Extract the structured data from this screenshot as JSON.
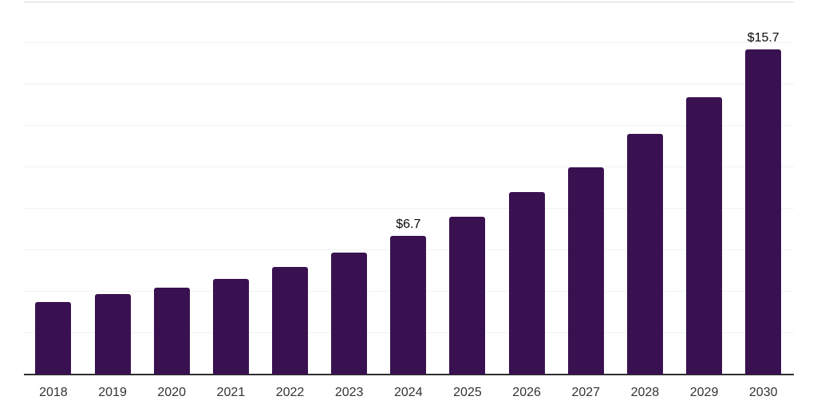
{
  "chart_data": {
    "type": "bar",
    "title": "",
    "xlabel": "",
    "ylabel": "",
    "categories": [
      "2018",
      "2019",
      "2020",
      "2021",
      "2022",
      "2023",
      "2024",
      "2025",
      "2026",
      "2027",
      "2028",
      "2029",
      "2030"
    ],
    "values": [
      3.5,
      3.9,
      4.2,
      4.6,
      5.2,
      5.9,
      6.7,
      7.6,
      8.8,
      10.0,
      11.6,
      13.4,
      15.7
    ],
    "point_labels": [
      "",
      "",
      "",
      "",
      "",
      "",
      "$6.7",
      "",
      "",
      "",
      "",
      "",
      "$15.7"
    ],
    "ylim": [
      0,
      18
    ],
    "gridline_step": 2,
    "grid": true,
    "legend_position": "none",
    "y_tick_labels_visible": false,
    "colors": {
      "bar": "#3A1150",
      "axis_line": "#2F2F2F",
      "gridline": "#F2F2F4",
      "plot_top_border": "#D9D9D9",
      "tick_label": "#333333",
      "data_label": "#0A0A0A",
      "background": "#FFFFFF"
    }
  }
}
